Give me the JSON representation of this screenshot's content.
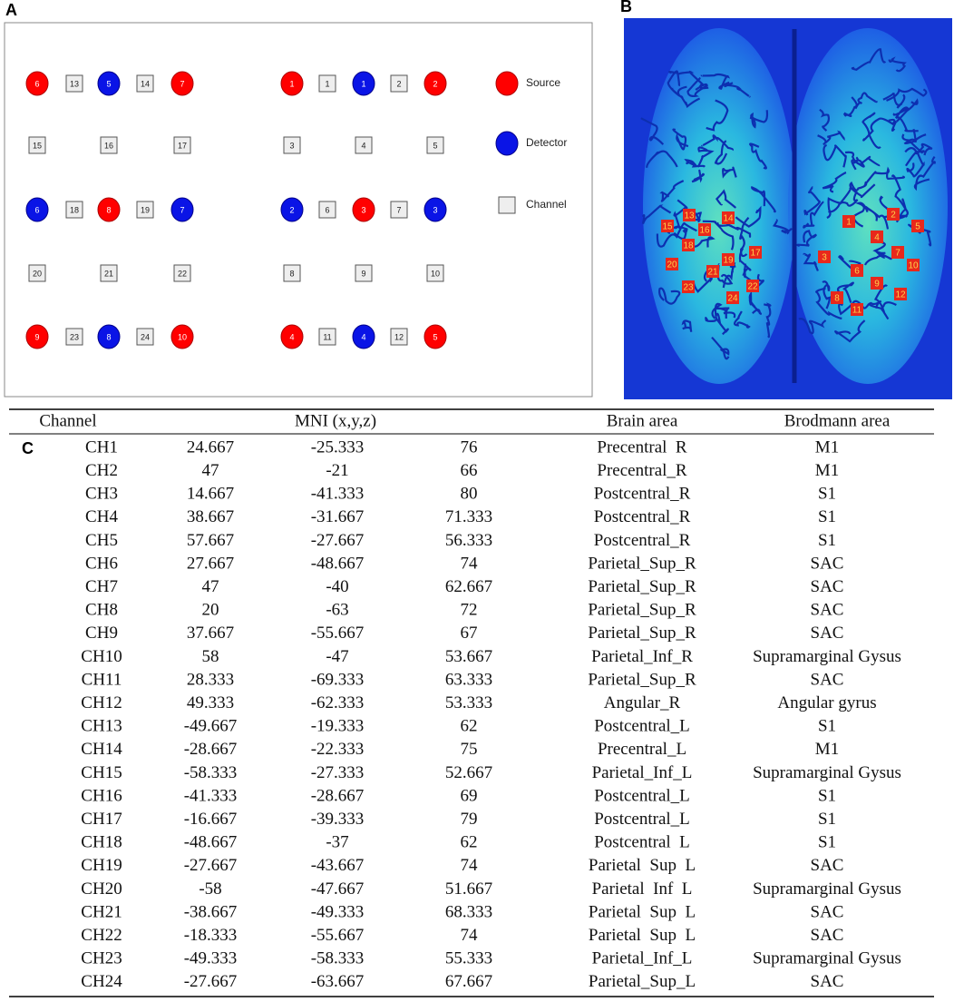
{
  "panel_labels": [
    "A",
    "B",
    "C"
  ],
  "montage": {
    "legend": {
      "source": "Source",
      "detector": "Detector",
      "channel": "Channel"
    },
    "left": [
      [
        "6",
        "13",
        "5",
        "14",
        "7"
      ],
      [
        "15",
        "16",
        "17"
      ],
      [
        "6",
        "18",
        "8",
        "19",
        "7"
      ],
      [
        "20",
        "21",
        "22"
      ],
      [
        "9",
        "23",
        "8",
        "24",
        "10"
      ]
    ],
    "right": [
      [
        "1",
        "1",
        "1",
        "2",
        "2"
      ],
      [
        "3",
        "4",
        "5"
      ],
      [
        "2",
        "6",
        "3",
        "7",
        "3"
      ],
      [
        "8",
        "9",
        "10"
      ],
      [
        "4",
        "11",
        "4",
        "12",
        "5"
      ]
    ]
  },
  "brain_channels": [
    "1",
    "2",
    "3",
    "4",
    "5",
    "6",
    "7",
    "8",
    "9",
    "10",
    "11",
    "12",
    "13",
    "14",
    "15",
    "16",
    "17",
    "18",
    "19",
    "20",
    "21",
    "22",
    "23",
    "24"
  ],
  "table": {
    "header": [
      "Channel",
      "MNI (x,y,z)",
      "Brain area",
      "Brodmann area"
    ],
    "rows": [
      [
        "CH1",
        24.667,
        -25.333,
        76,
        "Precentral  R",
        "M1"
      ],
      [
        "CH2",
        47,
        -21,
        66,
        "Precentral_R",
        "M1"
      ],
      [
        "CH3",
        14.667,
        -41.333,
        80,
        "Postcentral_R",
        "S1"
      ],
      [
        "CH4",
        38.667,
        -31.667,
        71.333,
        "Postcentral_R",
        "S1"
      ],
      [
        "CH5",
        57.667,
        -27.667,
        56.333,
        "Postcentral_R",
        "S1"
      ],
      [
        "CH6",
        27.667,
        -48.667,
        74,
        "Parietal_Sup_R",
        "SAC"
      ],
      [
        "CH7",
        47,
        -40,
        62.667,
        "Parietal_Sup_R",
        "SAC"
      ],
      [
        "CH8",
        20,
        -63,
        72,
        "Parietal_Sup_R",
        "SAC"
      ],
      [
        "CH9",
        37.667,
        -55.667,
        67,
        "Parietal_Sup_R",
        "SAC"
      ],
      [
        "CH10",
        58,
        -47,
        53.667,
        "Parietal_Inf_R",
        "Supramarginal Gysus"
      ],
      [
        "CH11",
        28.333,
        -69.333,
        63.333,
        "Parietal_Sup_R",
        "SAC"
      ],
      [
        "CH12",
        49.333,
        -62.333,
        53.333,
        "Angular_R",
        "Angular gyrus"
      ],
      [
        "CH13",
        -49.667,
        -19.333,
        62,
        "Postcentral_L",
        "S1"
      ],
      [
        "CH14",
        -28.667,
        -22.333,
        75,
        "Precentral_L",
        "M1"
      ],
      [
        "CH15",
        -58.333,
        -27.333,
        52.667,
        "Parietal_Inf_L",
        "Supramarginal Gysus"
      ],
      [
        "CH16",
        -41.333,
        -28.667,
        69,
        "Postcentral_L",
        "S1"
      ],
      [
        "CH17",
        -16.667,
        -39.333,
        79,
        "Postcentral_L",
        "S1"
      ],
      [
        "CH18",
        -48.667,
        -37,
        62,
        "Postcentral  L",
        "S1"
      ],
      [
        "CH19",
        -27.667,
        -43.667,
        74,
        "Parietal  Sup  L",
        "SAC"
      ],
      [
        "CH20",
        -58,
        -47.667,
        51.667,
        "Parietal  Inf  L",
        "Supramarginal Gysus"
      ],
      [
        "CH21",
        -38.667,
        -49.333,
        68.333,
        "Parietal  Sup  L",
        "SAC"
      ],
      [
        "CH22",
        -18.333,
        -55.667,
        74,
        "Parietal  Sup  L",
        "SAC"
      ],
      [
        "CH23",
        -49.333,
        -58.333,
        55.333,
        "Parietal_Inf_L",
        "Supramarginal Gysus"
      ],
      [
        "CH24",
        -27.667,
        -63.667,
        67.667,
        "Parietal_Sup_L",
        "SAC"
      ]
    ]
  }
}
